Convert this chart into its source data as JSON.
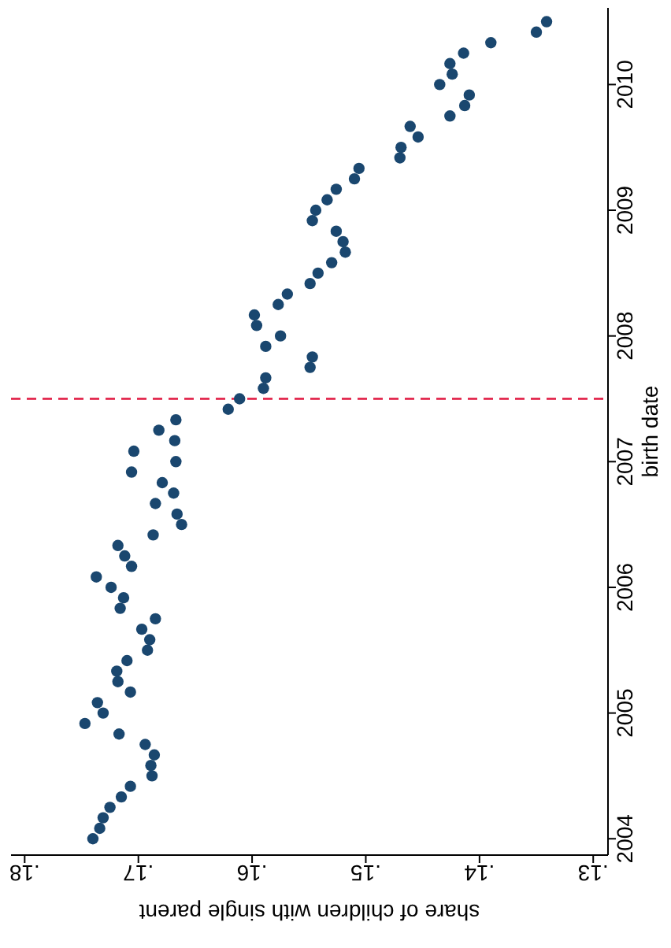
{
  "chart_data": {
    "type": "scatter",
    "xlabel": "share of children with single parent",
    "ylabel": "birth date",
    "marker": "circle",
    "grid": false,
    "xlim": [
      0.1812,
      0.1287
    ],
    "xticks": [
      {
        "value": 0.18,
        "label": ".18"
      },
      {
        "value": 0.17,
        "label": ".17"
      },
      {
        "value": 0.16,
        "label": ".16"
      },
      {
        "value": 0.15,
        "label": ".15"
      },
      {
        "value": 0.14,
        "label": ".14"
      },
      {
        "value": 0.13,
        "label": ".13"
      }
    ],
    "ylim": [
      2003.87,
      2010.61
    ],
    "yticks": [
      2004,
      2005,
      2006,
      2007,
      2008,
      2009,
      2010
    ],
    "ref_lines": [
      {
        "axis": "y",
        "value": 2007.5,
        "color": "#e0163f",
        "line_style": "dashed"
      }
    ],
    "x": [
      0.174,
      0.1734,
      0.1731,
      0.1725,
      0.1715,
      0.1707,
      0.1688,
      0.1689,
      0.1686,
      0.1694,
      0.1717,
      0.1747,
      0.1731,
      0.1736,
      0.1707,
      0.1718,
      0.1719,
      0.171,
      0.1692,
      0.169,
      0.1697,
      0.1685,
      0.1716,
      0.1713,
      0.1724,
      0.1737,
      0.1706,
      0.1712,
      0.1718,
      0.1687,
      0.1662,
      0.1666,
      0.1685,
      0.1669,
      0.1679,
      0.1706,
      0.1667,
      0.1704,
      0.1668,
      0.1682,
      0.1667,
      0.1621,
      0.1611,
      0.159,
      0.1588,
      0.1549,
      0.1547,
      0.1588,
      0.1575,
      0.1596,
      0.1598,
      0.1577,
      0.1569,
      0.1549,
      0.1542,
      0.153,
      0.1518,
      0.152,
      0.1526,
      0.1547,
      0.1544,
      0.1534,
      0.1526,
      0.151,
      0.1506,
      0.147,
      0.1469,
      0.1454,
      0.1461,
      0.1426,
      0.1413,
      0.1409,
      0.1435,
      0.1424,
      0.1426,
      0.1414,
      0.139,
      0.135,
      0.1341
    ],
    "series": [
      {
        "color": "#1a476f",
        "values": [
          2004,
          2004.083,
          2004.167,
          2004.25,
          2004.333,
          2004.417,
          2004.5,
          2004.583,
          2004.667,
          2004.75,
          2004.833,
          2004.917,
          2005,
          2005.083,
          2005.167,
          2005.25,
          2005.333,
          2005.417,
          2005.5,
          2005.583,
          2005.667,
          2005.75,
          2005.833,
          2005.917,
          2006,
          2006.083,
          2006.167,
          2006.25,
          2006.333,
          2006.417,
          2006.5,
          2006.583,
          2006.667,
          2006.75,
          2006.833,
          2006.917,
          2007,
          2007.083,
          2007.167,
          2007.25,
          2007.333,
          2007.417,
          2007.5,
          2007.583,
          2007.667,
          2007.75,
          2007.833,
          2007.917,
          2008,
          2008.083,
          2008.167,
          2008.25,
          2008.333,
          2008.417,
          2008.5,
          2008.583,
          2008.667,
          2008.75,
          2008.833,
          2008.917,
          2009,
          2009.083,
          2009.167,
          2009.25,
          2009.333,
          2009.417,
          2009.5,
          2009.583,
          2009.667,
          2009.75,
          2009.833,
          2009.917,
          2010,
          2010.083,
          2010.167,
          2010.25,
          2010.333,
          2010.417,
          2010.5
        ]
      }
    ]
  }
}
